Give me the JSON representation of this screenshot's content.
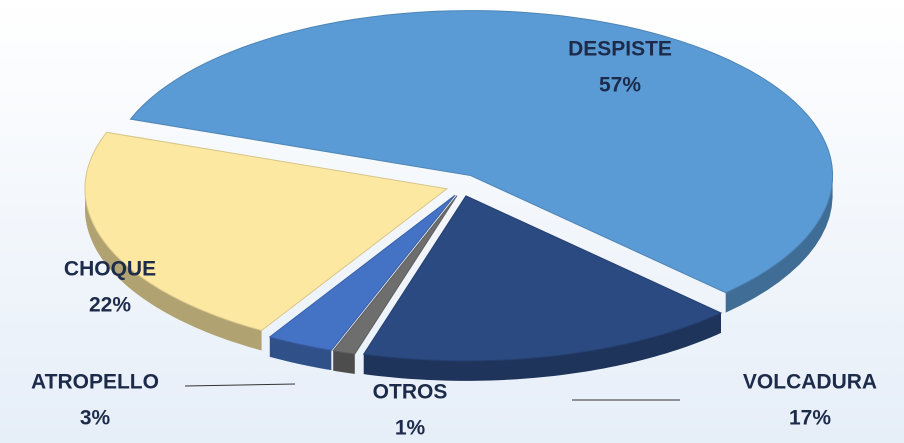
{
  "chart_data": {
    "type": "pie",
    "categories": [
      "DESPISTE",
      "VOLCADURA",
      "OTROS",
      "ATROPELLO",
      "CHOQUE"
    ],
    "values": [
      57,
      17,
      1,
      3,
      22
    ],
    "value_labels": [
      "57%",
      "17%",
      "1%",
      "3%",
      "22%"
    ],
    "colors": [
      "#5b9bd5",
      "#2b4a82",
      "#6e6e6e",
      "#4472c4",
      "#fde8a2"
    ]
  }
}
